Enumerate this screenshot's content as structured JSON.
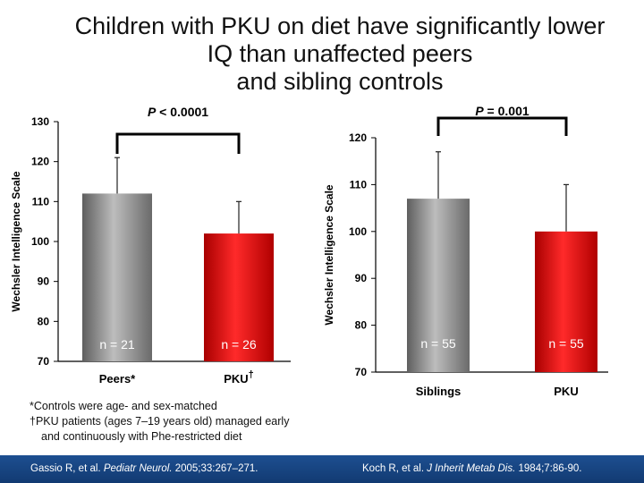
{
  "title": {
    "line1": "Children with PKU on diet have significantly lower",
    "line2": "IQ than unaffected peers",
    "line3": "and sibling controls"
  },
  "chart_data": [
    {
      "type": "bar",
      "title": "",
      "xlabel": "",
      "ylabel": "Wechsler Intelligence Scale",
      "ylim": [
        70,
        130
      ],
      "yticks": [
        "70",
        "80",
        "90",
        "100",
        "110",
        "120",
        "130"
      ],
      "grid": false,
      "categories": [
        "Peers*",
        "PKU"
      ],
      "category_marks": [
        "",
        "†"
      ],
      "values": [
        112,
        102
      ],
      "error_upper": [
        121,
        110
      ],
      "n_labels": [
        "n = 21",
        "n = 26"
      ],
      "bar_colors": [
        "#8c8c8c",
        "#e01010"
      ],
      "significance": {
        "prefix": "P",
        "text": " < 0.0001"
      }
    },
    {
      "type": "bar",
      "title": "",
      "xlabel": "",
      "ylabel": "Wechsler Intelligence Scale",
      "ylim": [
        70,
        120
      ],
      "yticks": [
        "70",
        "80",
        "90",
        "100",
        "110",
        "120"
      ],
      "grid": false,
      "categories": [
        "Siblings",
        "PKU"
      ],
      "category_marks": [
        "",
        ""
      ],
      "values": [
        107,
        100
      ],
      "error_upper": [
        117,
        110
      ],
      "n_labels": [
        "n = 55",
        "n = 55"
      ],
      "bar_colors": [
        "#8c8c8c",
        "#e01010"
      ],
      "significance": {
        "prefix": "P",
        "text": " = 0.001"
      }
    }
  ],
  "notes": {
    "line1": "*Controls were age- and sex-matched",
    "line2": "†PKU patients (ages 7–19 years old) managed early",
    "line3": "and continuously with Phe-restricted diet"
  },
  "footer": {
    "left_authors": "Gassio R, et al. ",
    "left_journal": "Pediatr Neurol.",
    "left_ref": " 2005;33:267–271.",
    "right_authors": "Koch R, et al. ",
    "right_journal": "J Inherit Metab Dis.",
    "right_ref": " 1984;7:86-90."
  },
  "colors": {
    "footer_bg": "#1d4f91",
    "bar_grey": "#8c8c8c",
    "bar_red": "#e01010"
  }
}
